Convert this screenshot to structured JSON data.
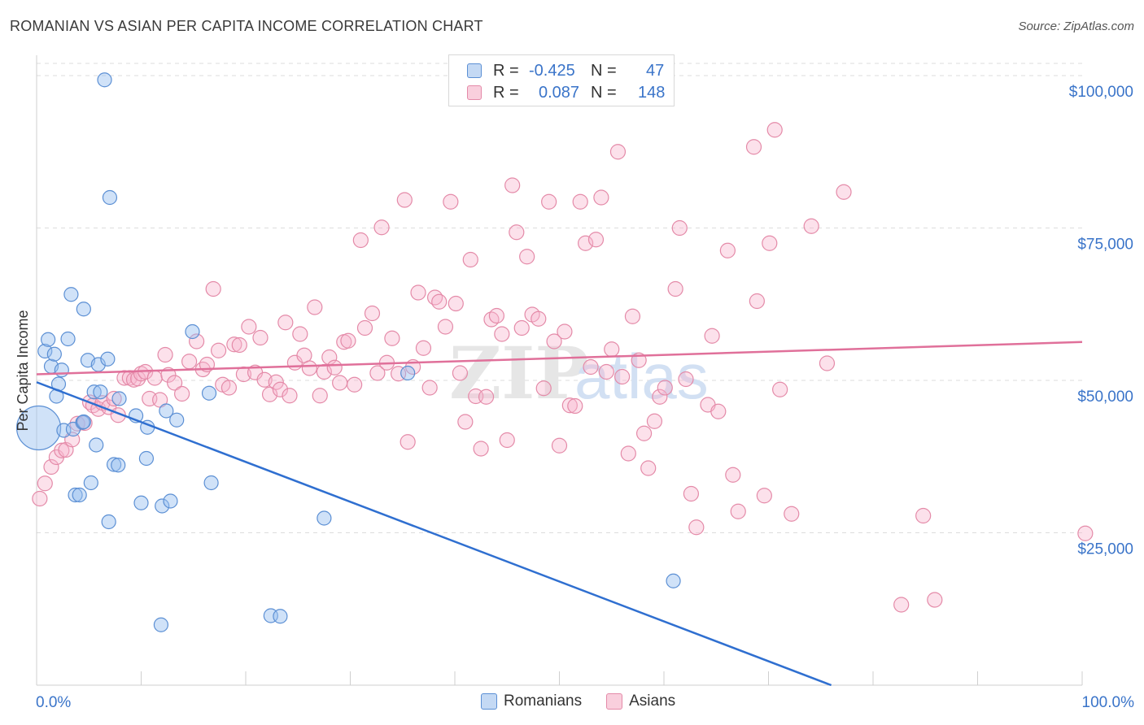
{
  "title": "ROMANIAN VS ASIAN PER CAPITA INCOME CORRELATION CHART",
  "source": "Source: ZipAtlas.com",
  "watermark": {
    "zip": "ZIP",
    "atlas": "atlas"
  },
  "legend_stats": [
    {
      "r_label": "R =",
      "r_value": "-0.425",
      "n_label": "N =",
      "n_value": "47",
      "color": "#a9c8ef",
      "border": "#5b8fd4"
    },
    {
      "r_label": "R =",
      "r_value": "0.087",
      "n_label": "N =",
      "n_value": "148",
      "color": "#f7bdd0",
      "border": "#e07a9c"
    }
  ],
  "colors": {
    "romanians_fill": "rgba(150,190,240,0.45)",
    "romanians_stroke": "#5b8fd4",
    "romanians_line": "#2f6fd0",
    "asians_fill": "rgba(247,180,204,0.40)",
    "asians_stroke": "#e48aa8",
    "asians_line": "#e0709a",
    "axis_label": "#3a74c9",
    "grid": "#dcdcdc"
  },
  "chart_data": {
    "type": "scatter",
    "title": "ROMANIAN VS ASIAN PER CAPITA INCOME CORRELATION CHART",
    "xlabel": "",
    "ylabel": "Per Capita Income",
    "xlim": [
      0,
      100
    ],
    "ylim": [
      0,
      102000
    ],
    "x_tick_labels": [
      "0.0%",
      "100.0%"
    ],
    "y_ticks": [
      25000,
      50000,
      75000,
      100000
    ],
    "y_tick_labels": [
      "$25,000",
      "$50,000",
      "$75,000",
      "$100,000"
    ],
    "legend": [
      "Romanians",
      "Asians"
    ],
    "series": [
      {
        "name": "Romanians",
        "r": -0.425,
        "n": 47,
        "trend": {
          "x": [
            0,
            76
          ],
          "y": [
            49700,
            0
          ]
        },
        "points": [
          {
            "x": 0.2,
            "y": 42200,
            "big": true
          },
          {
            "x": 0.8,
            "y": 54800
          },
          {
            "x": 1.1,
            "y": 56700
          },
          {
            "x": 1.4,
            "y": 52300
          },
          {
            "x": 1.7,
            "y": 54300
          },
          {
            "x": 1.9,
            "y": 47400
          },
          {
            "x": 2.1,
            "y": 49400
          },
          {
            "x": 2.4,
            "y": 51700
          },
          {
            "x": 2.6,
            "y": 41800
          },
          {
            "x": 3.0,
            "y": 56800
          },
          {
            "x": 3.3,
            "y": 64100
          },
          {
            "x": 3.5,
            "y": 42000
          },
          {
            "x": 3.7,
            "y": 31200
          },
          {
            "x": 4.1,
            "y": 31200
          },
          {
            "x": 4.4,
            "y": 43100
          },
          {
            "x": 4.5,
            "y": 43200
          },
          {
            "x": 4.5,
            "y": 61700
          },
          {
            "x": 4.9,
            "y": 53300
          },
          {
            "x": 5.2,
            "y": 33200
          },
          {
            "x": 5.5,
            "y": 48100
          },
          {
            "x": 5.7,
            "y": 39400
          },
          {
            "x": 5.9,
            "y": 52600
          },
          {
            "x": 6.1,
            "y": 48100
          },
          {
            "x": 6.5,
            "y": 99300
          },
          {
            "x": 6.8,
            "y": 53500
          },
          {
            "x": 6.9,
            "y": 26800
          },
          {
            "x": 7.0,
            "y": 80000
          },
          {
            "x": 7.4,
            "y": 36200
          },
          {
            "x": 7.8,
            "y": 36100
          },
          {
            "x": 7.9,
            "y": 47000
          },
          {
            "x": 9.5,
            "y": 44200
          },
          {
            "x": 10.0,
            "y": 29900
          },
          {
            "x": 10.5,
            "y": 37200
          },
          {
            "x": 10.6,
            "y": 42300
          },
          {
            "x": 11.9,
            "y": 9900
          },
          {
            "x": 12.0,
            "y": 29400
          },
          {
            "x": 12.4,
            "y": 45000
          },
          {
            "x": 12.8,
            "y": 30200
          },
          {
            "x": 13.4,
            "y": 43500
          },
          {
            "x": 14.9,
            "y": 58000
          },
          {
            "x": 16.5,
            "y": 47900
          },
          {
            "x": 16.7,
            "y": 33200
          },
          {
            "x": 22.4,
            "y": 11400
          },
          {
            "x": 23.3,
            "y": 11300
          },
          {
            "x": 27.5,
            "y": 27400
          },
          {
            "x": 35.5,
            "y": 51200
          },
          {
            "x": 60.9,
            "y": 17100
          }
        ]
      },
      {
        "name": "Asians",
        "r": 0.087,
        "n": 148,
        "trend": {
          "x": [
            0,
            100
          ],
          "y": [
            51000,
            56300
          ]
        },
        "points": [
          {
            "x": 0.3,
            "y": 30600
          },
          {
            "x": 0.8,
            "y": 33100
          },
          {
            "x": 1.4,
            "y": 35800
          },
          {
            "x": 1.9,
            "y": 37400
          },
          {
            "x": 2.4,
            "y": 38500
          },
          {
            "x": 2.8,
            "y": 38600
          },
          {
            "x": 3.4,
            "y": 40300
          },
          {
            "x": 3.9,
            "y": 42900
          },
          {
            "x": 4.6,
            "y": 43000
          },
          {
            "x": 5.1,
            "y": 46400
          },
          {
            "x": 5.4,
            "y": 45900
          },
          {
            "x": 5.9,
            "y": 45300
          },
          {
            "x": 6.3,
            "y": 46300
          },
          {
            "x": 6.9,
            "y": 45600
          },
          {
            "x": 7.4,
            "y": 47000
          },
          {
            "x": 7.8,
            "y": 44300
          },
          {
            "x": 8.4,
            "y": 50400
          },
          {
            "x": 8.9,
            "y": 50400
          },
          {
            "x": 9.3,
            "y": 50100
          },
          {
            "x": 9.7,
            "y": 50300
          },
          {
            "x": 10.0,
            "y": 51100
          },
          {
            "x": 10.4,
            "y": 51400
          },
          {
            "x": 10.8,
            "y": 47000
          },
          {
            "x": 11.3,
            "y": 50400
          },
          {
            "x": 11.8,
            "y": 46800
          },
          {
            "x": 12.3,
            "y": 54200
          },
          {
            "x": 12.6,
            "y": 50900
          },
          {
            "x": 13.2,
            "y": 49600
          },
          {
            "x": 13.9,
            "y": 47800
          },
          {
            "x": 14.6,
            "y": 53100
          },
          {
            "x": 15.3,
            "y": 56400
          },
          {
            "x": 15.9,
            "y": 51800
          },
          {
            "x": 16.3,
            "y": 52600
          },
          {
            "x": 16.9,
            "y": 65000
          },
          {
            "x": 17.4,
            "y": 54900
          },
          {
            "x": 17.8,
            "y": 49300
          },
          {
            "x": 18.4,
            "y": 48800
          },
          {
            "x": 18.9,
            "y": 55900
          },
          {
            "x": 19.4,
            "y": 55800
          },
          {
            "x": 19.8,
            "y": 51000
          },
          {
            "x": 20.3,
            "y": 58800
          },
          {
            "x": 20.9,
            "y": 51300
          },
          {
            "x": 21.4,
            "y": 57000
          },
          {
            "x": 21.8,
            "y": 50100
          },
          {
            "x": 22.3,
            "y": 47700
          },
          {
            "x": 22.9,
            "y": 49700
          },
          {
            "x": 23.3,
            "y": 48500
          },
          {
            "x": 23.8,
            "y": 59500
          },
          {
            "x": 24.2,
            "y": 47500
          },
          {
            "x": 24.7,
            "y": 52900
          },
          {
            "x": 25.2,
            "y": 57600
          },
          {
            "x": 25.6,
            "y": 54100
          },
          {
            "x": 26.1,
            "y": 52000
          },
          {
            "x": 26.6,
            "y": 62000
          },
          {
            "x": 27.1,
            "y": 47500
          },
          {
            "x": 27.5,
            "y": 51400
          },
          {
            "x": 28.0,
            "y": 53800
          },
          {
            "x": 28.5,
            "y": 52100
          },
          {
            "x": 29.0,
            "y": 49600
          },
          {
            "x": 29.4,
            "y": 56300
          },
          {
            "x": 29.8,
            "y": 56500
          },
          {
            "x": 30.4,
            "y": 49300
          },
          {
            "x": 31.0,
            "y": 73000
          },
          {
            "x": 31.4,
            "y": 58600
          },
          {
            "x": 32.1,
            "y": 61000
          },
          {
            "x": 32.6,
            "y": 51200
          },
          {
            "x": 33.0,
            "y": 75100
          },
          {
            "x": 33.5,
            "y": 52900
          },
          {
            "x": 34.0,
            "y": 56900
          },
          {
            "x": 34.6,
            "y": 51100
          },
          {
            "x": 35.2,
            "y": 79600
          },
          {
            "x": 35.5,
            "y": 39900
          },
          {
            "x": 36.0,
            "y": 52200
          },
          {
            "x": 36.5,
            "y": 64400
          },
          {
            "x": 37.0,
            "y": 55300
          },
          {
            "x": 37.6,
            "y": 48800
          },
          {
            "x": 38.1,
            "y": 63600
          },
          {
            "x": 38.5,
            "y": 62900
          },
          {
            "x": 39.1,
            "y": 58800
          },
          {
            "x": 39.6,
            "y": 79300
          },
          {
            "x": 40.1,
            "y": 62600
          },
          {
            "x": 40.5,
            "y": 51200
          },
          {
            "x": 41.0,
            "y": 43200
          },
          {
            "x": 41.5,
            "y": 69800
          },
          {
            "x": 42.0,
            "y": 47400
          },
          {
            "x": 42.5,
            "y": 38800
          },
          {
            "x": 43.0,
            "y": 47300
          },
          {
            "x": 43.5,
            "y": 60000
          },
          {
            "x": 44.0,
            "y": 60600
          },
          {
            "x": 44.5,
            "y": 57600
          },
          {
            "x": 45.0,
            "y": 40200
          },
          {
            "x": 45.5,
            "y": 82000
          },
          {
            "x": 45.9,
            "y": 74300
          },
          {
            "x": 46.4,
            "y": 58600
          },
          {
            "x": 46.9,
            "y": 70300
          },
          {
            "x": 47.4,
            "y": 60800
          },
          {
            "x": 48.0,
            "y": 60100
          },
          {
            "x": 48.5,
            "y": 48700
          },
          {
            "x": 49.0,
            "y": 79300
          },
          {
            "x": 49.5,
            "y": 56400
          },
          {
            "x": 50.0,
            "y": 39300
          },
          {
            "x": 50.5,
            "y": 58000
          },
          {
            "x": 51.0,
            "y": 45900
          },
          {
            "x": 51.5,
            "y": 45800
          },
          {
            "x": 52.0,
            "y": 79300
          },
          {
            "x": 52.5,
            "y": 72500
          },
          {
            "x": 53.0,
            "y": 52200
          },
          {
            "x": 53.5,
            "y": 73100
          },
          {
            "x": 54.0,
            "y": 80000
          },
          {
            "x": 54.5,
            "y": 51400
          },
          {
            "x": 55.0,
            "y": 55100
          },
          {
            "x": 55.6,
            "y": 87500
          },
          {
            "x": 56.0,
            "y": 50600
          },
          {
            "x": 56.6,
            "y": 38000
          },
          {
            "x": 57.0,
            "y": 60500
          },
          {
            "x": 57.6,
            "y": 53300
          },
          {
            "x": 58.1,
            "y": 41300
          },
          {
            "x": 58.5,
            "y": 35600
          },
          {
            "x": 59.1,
            "y": 43300
          },
          {
            "x": 59.6,
            "y": 47300
          },
          {
            "x": 60.1,
            "y": 48800
          },
          {
            "x": 61.1,
            "y": 65000
          },
          {
            "x": 61.5,
            "y": 75000
          },
          {
            "x": 62.1,
            "y": 50200
          },
          {
            "x": 62.6,
            "y": 31400
          },
          {
            "x": 63.1,
            "y": 25900
          },
          {
            "x": 64.2,
            "y": 46000
          },
          {
            "x": 64.6,
            "y": 57300
          },
          {
            "x": 65.2,
            "y": 44900
          },
          {
            "x": 66.1,
            "y": 71300
          },
          {
            "x": 66.6,
            "y": 34500
          },
          {
            "x": 67.1,
            "y": 28500
          },
          {
            "x": 68.6,
            "y": 88300
          },
          {
            "x": 68.9,
            "y": 63000
          },
          {
            "x": 69.6,
            "y": 31100
          },
          {
            "x": 70.1,
            "y": 72500
          },
          {
            "x": 70.6,
            "y": 91100
          },
          {
            "x": 71.1,
            "y": 48500
          },
          {
            "x": 72.2,
            "y": 28100
          },
          {
            "x": 74.1,
            "y": 75300
          },
          {
            "x": 75.6,
            "y": 52800
          },
          {
            "x": 77.2,
            "y": 80900
          },
          {
            "x": 82.7,
            "y": 13200
          },
          {
            "x": 84.8,
            "y": 27800
          },
          {
            "x": 85.9,
            "y": 14000
          },
          {
            "x": 100.3,
            "y": 24900
          }
        ]
      }
    ]
  }
}
